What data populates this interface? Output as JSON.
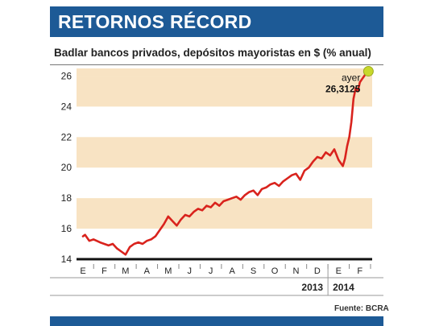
{
  "header": {
    "title": "RETORNOS RÉCORD"
  },
  "chart_data": {
    "type": "line",
    "title": "RETORNOS RÉCORD",
    "subtitle": "Badlar bancos privados, depósitos mayoristas en $ (% anual)",
    "xlabel": "",
    "ylabel": "",
    "ylim": [
      14,
      26.5
    ],
    "yticks": [
      14,
      16,
      18,
      20,
      22,
      24,
      26
    ],
    "month_labels": [
      "E",
      "F",
      "M",
      "A",
      "M",
      "J",
      "J",
      "A",
      "S",
      "O",
      "N",
      "D",
      "E",
      "F"
    ],
    "year_labels": [
      "2013",
      "2014"
    ],
    "grid": "alternating horizontal bands",
    "series": [
      {
        "color": "#d9231d",
        "x": [
          0,
          0.1,
          0.3,
          0.5,
          0.8,
          1.0,
          1.2,
          1.4,
          1.6,
          1.8,
          2.0,
          2.2,
          2.4,
          2.6,
          2.8,
          3.0,
          3.2,
          3.4,
          3.6,
          3.8,
          4.0,
          4.2,
          4.4,
          4.6,
          4.8,
          5.0,
          5.2,
          5.4,
          5.6,
          5.8,
          6.0,
          6.2,
          6.4,
          6.6,
          6.8,
          7.0,
          7.2,
          7.4,
          7.6,
          7.8,
          8.0,
          8.2,
          8.4,
          8.6,
          8.8,
          9.0,
          9.2,
          9.4,
          9.6,
          9.8,
          10.0,
          10.2,
          10.4,
          10.6,
          10.8,
          11.0,
          11.2,
          11.4,
          11.6,
          11.8,
          12.0,
          12.2,
          12.3,
          12.4,
          12.5,
          12.6,
          12.7,
          12.8,
          12.9,
          13.0,
          13.1,
          13.2,
          13.3,
          13.4
        ],
        "values": [
          15.5,
          15.6,
          15.2,
          15.3,
          15.1,
          15.0,
          14.9,
          15.0,
          14.7,
          14.5,
          14.3,
          14.8,
          15.0,
          15.1,
          15.0,
          15.2,
          15.3,
          15.5,
          15.9,
          16.3,
          16.8,
          16.5,
          16.2,
          16.6,
          16.9,
          16.8,
          17.1,
          17.3,
          17.2,
          17.5,
          17.4,
          17.7,
          17.5,
          17.8,
          17.9,
          18.0,
          18.1,
          17.9,
          18.2,
          18.4,
          18.5,
          18.2,
          18.6,
          18.7,
          18.9,
          19.0,
          18.8,
          19.1,
          19.3,
          19.5,
          19.6,
          19.2,
          19.8,
          20.0,
          20.4,
          20.7,
          20.6,
          21.0,
          20.8,
          21.2,
          20.5,
          20.1,
          20.6,
          21.4,
          22.0,
          23.0,
          24.5,
          25.2,
          25.0,
          25.6,
          25.8,
          26.0,
          26.2,
          26.3125
        ]
      }
    ],
    "annotations": [
      {
        "text": "ayer",
        "x": 13.4,
        "y": 26.3125
      },
      {
        "text": "26,3125",
        "x": 13.4,
        "y": 26.3125
      }
    ],
    "highlight_color": "#c8d82a",
    "band_color": "#f8e3c3"
  },
  "source": "Fuente: BCRA"
}
